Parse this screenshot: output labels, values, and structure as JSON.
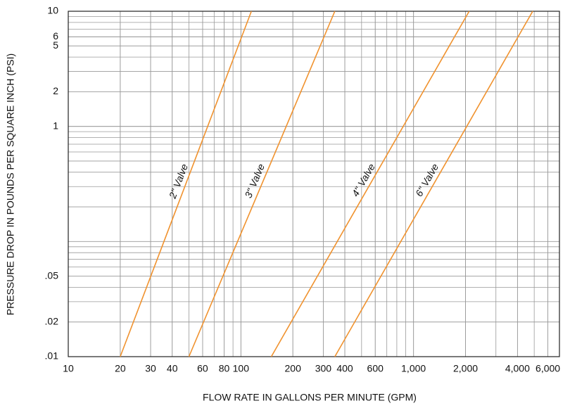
{
  "chart_data": {
    "type": "line",
    "xlabel": "FLOW RATE IN GALLONS PER MINUTE (GPM)",
    "ylabel": "PRESSURE DROP IN POUNDS PER SQUARE INCH (PSI)",
    "xscale": "log",
    "yscale": "log",
    "grid": true,
    "xlim": [
      10,
      7000
    ],
    "ylim": [
      0.01,
      10
    ],
    "xticks": [
      10,
      20,
      30,
      40,
      60,
      80,
      100,
      200,
      300,
      400,
      600,
      {
        "value": 1000,
        "label": "1,000"
      },
      {
        "value": 2000,
        "label": "2,000"
      },
      {
        "value": 4000,
        "label": "4,000"
      },
      {
        "value": 6000,
        "label": "6,000"
      }
    ],
    "yticks": [
      {
        "value": 0.01,
        "label": ".01"
      },
      {
        "value": 0.02,
        "label": ".02"
      },
      {
        "value": 0.05,
        "label": ".05"
      },
      1,
      2,
      5,
      6,
      10
    ],
    "series": [
      {
        "name": "2\" Valve",
        "color": "#f0922e",
        "x": [
          20,
          115
        ],
        "values": [
          0.01,
          10
        ]
      },
      {
        "name": "3\" Valve",
        "color": "#f0922e",
        "x": [
          50,
          350
        ],
        "values": [
          0.01,
          10
        ]
      },
      {
        "name": "4\" Valve",
        "color": "#f0922e",
        "x": [
          150,
          2100
        ],
        "values": [
          0.01,
          10
        ]
      },
      {
        "name": "6\" Valve",
        "color": "#f0922e",
        "x": [
          350,
          4900
        ],
        "values": [
          0.01,
          10
        ]
      }
    ]
  }
}
